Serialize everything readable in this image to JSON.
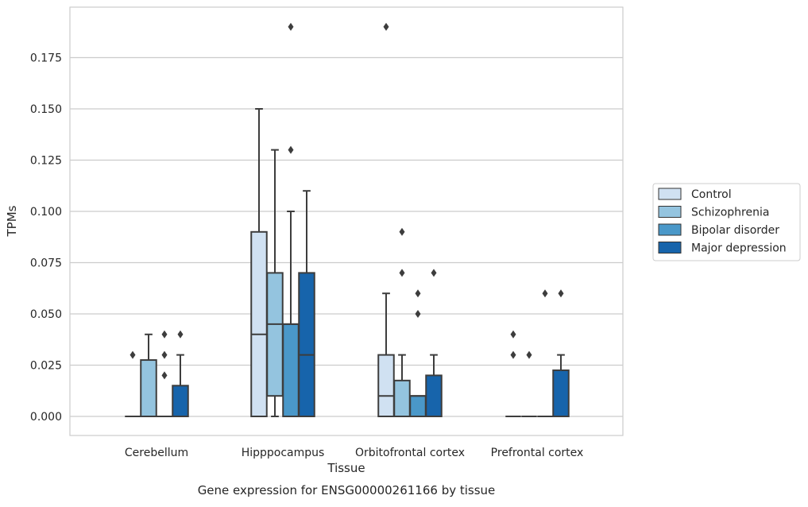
{
  "chart_data": {
    "type": "box",
    "title": "Gene expression for ENSG00000261166 by tissue",
    "xlabel": "Tissue",
    "ylabel": "TPMs",
    "ylim": [
      -0.0185,
      0.2
    ],
    "yticks": [
      0.0,
      0.025,
      0.05,
      0.075,
      0.1,
      0.125,
      0.15,
      0.175
    ],
    "ytick_labels": [
      "0.000",
      "0.025",
      "0.050",
      "0.075",
      "0.100",
      "0.125",
      "0.150",
      "0.175"
    ],
    "grid": true,
    "legend_position": "right",
    "categories": [
      "Cerebellum",
      "Hipppocampus",
      "Orbitofrontal cortex",
      "Prefrontal cortex"
    ],
    "series": [
      {
        "name": "Control",
        "color": "#d0e1f2",
        "boxes": [
          {
            "q1": 0.0,
            "median": 0.0,
            "q3": 0.0,
            "whisker_low": 0.0,
            "whisker_high": 0.0,
            "outliers": [
              0.03
            ]
          },
          {
            "q1": 0.0,
            "median": 0.04,
            "q3": 0.09,
            "whisker_low": 0.0,
            "whisker_high": 0.15,
            "outliers": []
          },
          {
            "q1": 0.0,
            "median": 0.01,
            "q3": 0.03,
            "whisker_low": 0.0,
            "whisker_high": 0.06,
            "outliers": [
              0.19
            ]
          },
          {
            "q1": 0.0,
            "median": 0.0,
            "q3": 0.0,
            "whisker_low": 0.0,
            "whisker_high": 0.0,
            "outliers": [
              0.03,
              0.04
            ]
          }
        ]
      },
      {
        "name": "Schizophrenia",
        "color": "#94c4df",
        "boxes": [
          {
            "q1": 0.0,
            "median": 0.0,
            "q3": 0.0275,
            "whisker_low": 0.0,
            "whisker_high": 0.04,
            "outliers": []
          },
          {
            "q1": 0.01,
            "median": 0.045,
            "q3": 0.07,
            "whisker_low": 0.0,
            "whisker_high": 0.13,
            "outliers": []
          },
          {
            "q1": 0.0,
            "median": 0.0,
            "q3": 0.0175,
            "whisker_low": 0.0,
            "whisker_high": 0.03,
            "outliers": [
              0.07,
              0.09
            ]
          },
          {
            "q1": 0.0,
            "median": 0.0,
            "q3": 0.0,
            "whisker_low": 0.0,
            "whisker_high": 0.0,
            "outliers": [
              0.03
            ]
          }
        ]
      },
      {
        "name": "Bipolar disorder",
        "color": "#4a98c9",
        "boxes": [
          {
            "q1": 0.0,
            "median": 0.0,
            "q3": 0.0,
            "whisker_low": 0.0,
            "whisker_high": 0.0,
            "outliers": [
              0.02,
              0.03,
              0.04
            ]
          },
          {
            "q1": 0.0,
            "median": 0.045,
            "q3": 0.045,
            "whisker_low": 0.0,
            "whisker_high": 0.1,
            "outliers": [
              0.13,
              0.19
            ]
          },
          {
            "q1": 0.0,
            "median": 0.01,
            "q3": 0.01,
            "whisker_low": 0.0,
            "whisker_high": 0.01,
            "outliers": [
              0.05,
              0.06
            ]
          },
          {
            "q1": 0.0,
            "median": 0.0,
            "q3": 0.0,
            "whisker_low": 0.0,
            "whisker_high": 0.0,
            "outliers": [
              0.06
            ]
          }
        ]
      },
      {
        "name": "Major depression",
        "color": "#1764ab",
        "boxes": [
          {
            "q1": 0.0,
            "median": 0.0,
            "q3": 0.015,
            "whisker_low": 0.0,
            "whisker_high": 0.03,
            "outliers": [
              0.04
            ]
          },
          {
            "q1": 0.0,
            "median": 0.03,
            "q3": 0.07,
            "whisker_low": 0.0,
            "whisker_high": 0.11,
            "outliers": []
          },
          {
            "q1": 0.0,
            "median": 0.0,
            "q3": 0.02,
            "whisker_low": 0.0,
            "whisker_high": 0.03,
            "outliers": [
              0.07
            ]
          },
          {
            "q1": 0.0,
            "median": 0.0,
            "q3": 0.0225,
            "whisker_low": 0.0,
            "whisker_high": 0.03,
            "outliers": [
              0.06
            ]
          }
        ]
      }
    ]
  }
}
